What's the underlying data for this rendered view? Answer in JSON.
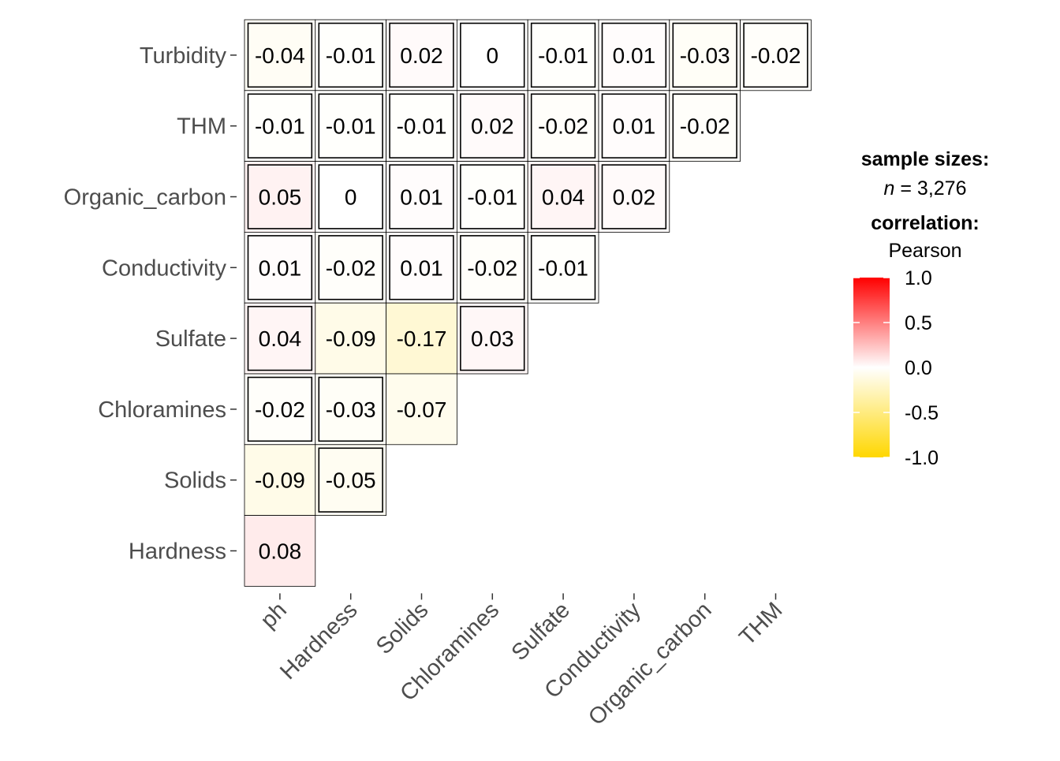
{
  "chart_data": {
    "type": "heatmap",
    "correlation_type": "Pearson",
    "x_categories": [
      "ph",
      "Hardness",
      "Solids",
      "Chloramines",
      "Sulfate",
      "Conductivity",
      "Organic_carbon",
      "THM"
    ],
    "y_categories": [
      "Hardness",
      "Solids",
      "Chloramines",
      "Sulfate",
      "Conductivity",
      "Organic_carbon",
      "THM",
      "Turbidity"
    ],
    "rows": [
      {
        "y": "Turbidity",
        "labels": [
          "-0.04",
          "-0.01",
          "0.02",
          "0",
          "-0.01",
          "0.01",
          "-0.03",
          "-0.02"
        ],
        "values": [
          -0.04,
          -0.01,
          0.02,
          0,
          -0.01,
          0.01,
          -0.03,
          -0.02
        ],
        "insignificant": [
          true,
          true,
          true,
          true,
          true,
          true,
          true,
          true
        ]
      },
      {
        "y": "THM",
        "labels": [
          "-0.01",
          "-0.01",
          "-0.01",
          "0.02",
          "-0.02",
          "0.01",
          "-0.02"
        ],
        "values": [
          -0.01,
          -0.01,
          -0.01,
          0.02,
          -0.02,
          0.01,
          -0.02
        ],
        "insignificant": [
          true,
          true,
          true,
          true,
          true,
          true,
          true
        ]
      },
      {
        "y": "Organic_carbon",
        "labels": [
          "0.05",
          "0",
          "0.01",
          "-0.01",
          "0.04",
          "0.02"
        ],
        "values": [
          0.05,
          0,
          0.01,
          -0.01,
          0.04,
          0.02
        ],
        "insignificant": [
          true,
          true,
          true,
          true,
          true,
          true
        ]
      },
      {
        "y": "Conductivity",
        "labels": [
          "0.01",
          "-0.02",
          "0.01",
          "-0.02",
          "-0.01"
        ],
        "values": [
          0.01,
          -0.02,
          0.01,
          -0.02,
          -0.01
        ],
        "insignificant": [
          true,
          true,
          true,
          true,
          true
        ]
      },
      {
        "y": "Sulfate",
        "labels": [
          "0.04",
          "-0.09",
          "-0.17",
          "0.03"
        ],
        "values": [
          0.04,
          -0.09,
          -0.17,
          0.03
        ],
        "insignificant": [
          true,
          false,
          false,
          true
        ]
      },
      {
        "y": "Chloramines",
        "labels": [
          "-0.02",
          "-0.03",
          "-0.07"
        ],
        "values": [
          -0.02,
          -0.03,
          -0.07
        ],
        "insignificant": [
          true,
          true,
          false
        ]
      },
      {
        "y": "Solids",
        "labels": [
          "-0.09",
          "-0.05"
        ],
        "values": [
          -0.09,
          -0.05
        ],
        "insignificant": [
          false,
          true
        ]
      },
      {
        "y": "Hardness",
        "labels": [
          "0.08"
        ],
        "values": [
          0.08
        ],
        "insignificant": [
          false
        ]
      }
    ],
    "color_scale": {
      "low": "#FFD700",
      "mid": "#FFFFFF",
      "high": "#FF0000",
      "limits": [
        -1,
        1
      ]
    }
  },
  "legend": {
    "sample_title": "sample sizes:",
    "n_italic": "n",
    "n_value": " = 3,276",
    "corr_title": "correlation:",
    "corr_method": "Pearson",
    "tick_labels": [
      "1.0",
      "0.5",
      "0.0",
      "-0.5",
      "-1.0"
    ],
    "tick_values": [
      1.0,
      0.5,
      0.0,
      -0.5,
      -1.0
    ]
  }
}
